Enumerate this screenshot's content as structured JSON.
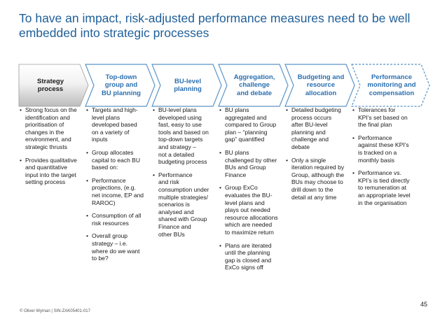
{
  "title": {
    "lines": [
      "To have an impact, risk-adjusted performance measures need to be well",
      "embedded into strategic processes"
    ]
  },
  "colors": {
    "title": "#1f5f99",
    "chevron_outline": "#5b95c8",
    "first_chevron_gradient_top": "#ffffff",
    "first_chevron_gradient_bottom": "#bcbcbc"
  },
  "chevrons": [
    {
      "lines": [
        "Strategy",
        "process"
      ]
    },
    {
      "lines": [
        "Top-down",
        "group and",
        "BU planning"
      ]
    },
    {
      "lines": [
        "BU-level",
        "planning"
      ]
    },
    {
      "lines": [
        "Aggregation,",
        "challenge",
        "and debate"
      ]
    },
    {
      "lines": [
        "Budgeting and",
        "resource",
        "allocation"
      ]
    },
    {
      "lines": [
        "Performance",
        "monitoring and",
        "compensation"
      ]
    }
  ],
  "columns": [
    {
      "bullets": [
        {
          "lines": [
            "Strong focus on the",
            "identification and",
            "prioritisation of",
            "changes in the",
            "environment, and",
            "strategic thrusts"
          ]
        },
        {
          "lines": [
            "Provides qualitative",
            "and quantitative",
            "input into the target",
            "setting process"
          ]
        }
      ]
    },
    {
      "bullets": [
        {
          "lines": [
            "Targets and high-",
            "level plans",
            "developed based",
            "on a variety of",
            "inputs"
          ]
        },
        {
          "lines": [
            "Group allocates",
            "capital to each BU",
            "based on:"
          ]
        },
        {
          "lines": [
            "Performance",
            "projections, (e.g.",
            "net income, EP and",
            "RAROC)"
          ]
        },
        {
          "lines": [
            "Consumption of all",
            "risk resources"
          ]
        },
        {
          "lines": [
            "Overall group",
            "strategy – i.e.",
            "where do we want",
            "to be?"
          ]
        }
      ]
    },
    {
      "bullets": [
        {
          "lines": [
            "BU-level plans",
            "developed using",
            "fast, easy to use",
            "tools and based on",
            "top-down targets",
            "and strategy –",
            "not a detailed",
            "budgeting process"
          ]
        },
        {
          "lines": [
            "Performance",
            "and risk",
            "consumption under",
            "multiple strategies/",
            "scenarios is",
            "analysed and",
            "shared with Group",
            "Finance and",
            "other BUs"
          ]
        }
      ]
    },
    {
      "bullets": [
        {
          "lines": [
            "BU plans",
            "aggregated and",
            "compared to Group",
            "plan – “planning",
            "gap” quantified"
          ]
        },
        {
          "lines": [
            "BU plans",
            "challenged by other",
            "BUs and Group",
            "Finance"
          ]
        },
        {
          "lines": [
            "Group ExCo",
            "evaluates the BU-",
            "level plans and",
            "plays out needed",
            "resource allocations",
            "which are needed",
            "to maximize return"
          ]
        },
        {
          "lines": [
            "Plans are iterated",
            "until the planning",
            "gap is closed and",
            "ExCo signs off"
          ]
        }
      ]
    },
    {
      "bullets": [
        {
          "lines": [
            "Detailed budgeting",
            "process occurs",
            "after BU-level",
            "planning and",
            "challenge and",
            "debate"
          ]
        },
        {
          "lines": [
            "Only a single",
            "iteration required by",
            "Group, although the",
            "BUs may choose to",
            "drill down to the",
            "detail at any time"
          ]
        }
      ]
    },
    {
      "bullets": [
        {
          "lines": [
            "Tolerances for",
            "KPI’s set based on",
            "the final plan"
          ]
        },
        {
          "lines": [
            "Performance",
            "against these KPI’s",
            "is tracked on a",
            "monthly basis"
          ]
        },
        {
          "lines": [
            "Performance vs.",
            "KPI’s is tied directly",
            "to remuneration at",
            "an appropriate level",
            "in the organisation"
          ]
        }
      ]
    }
  ],
  "footer": {
    "copyright": "© Oliver Wyman | SIN-ZAK05401-017",
    "page_number": "45"
  }
}
